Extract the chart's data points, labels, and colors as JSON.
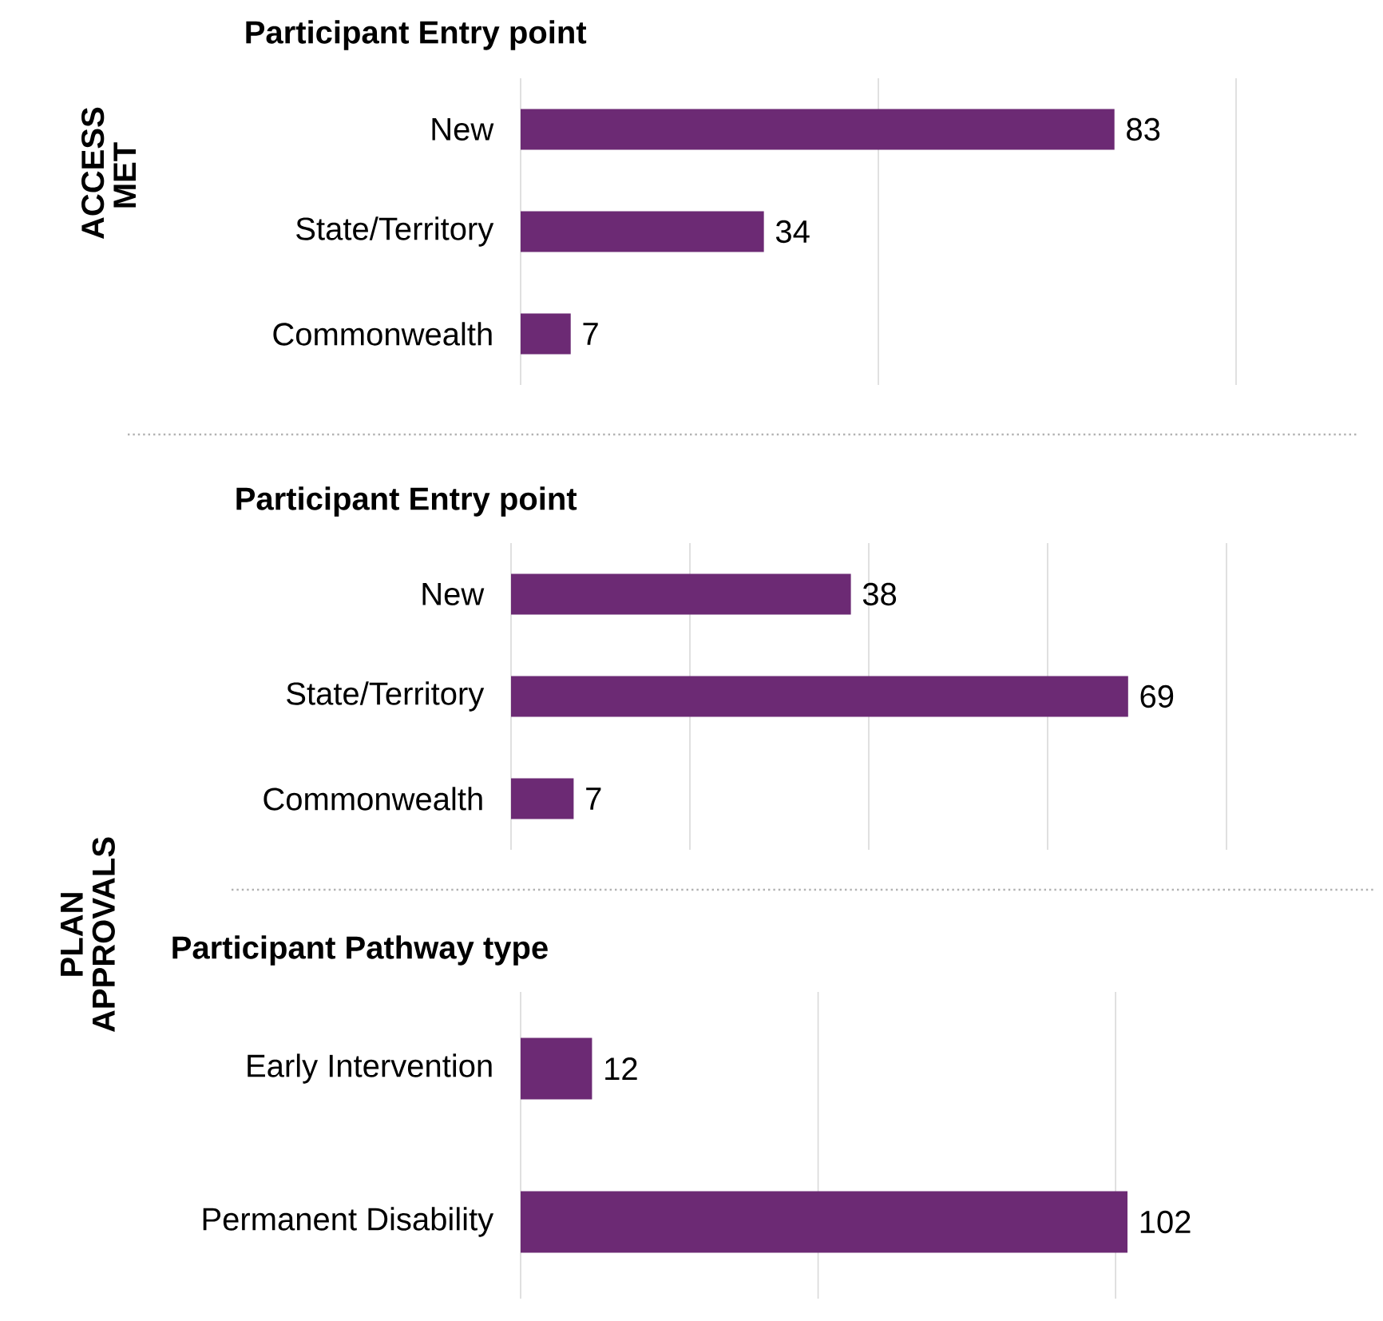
{
  "chart_data": [
    {
      "type": "bar",
      "orientation": "horizontal",
      "title": "Participant Entry point",
      "ylabel": "ACCESS MET",
      "categories": [
        "New",
        "State/Territory",
        "Commonwealth"
      ],
      "values": [
        83,
        34,
        7
      ],
      "color": "#6c2a74",
      "xlim": [
        0,
        100
      ],
      "xticks": [
        {
          "value": 0,
          "label": null
        },
        {
          "value": 50,
          "label": null
        },
        {
          "value": 100,
          "label": null
        }
      ],
      "grid": "x",
      "data_labels": true,
      "tick_labels": "y"
    },
    {
      "type": "bar",
      "orientation": "horizontal",
      "title": "Participant Entry point",
      "ylabel": "PLAN APPROVALS",
      "categories": [
        "New",
        "State/Territory",
        "Commonwealth"
      ],
      "values": [
        38,
        69,
        7
      ],
      "color": "#6c2a74",
      "xlim": [
        0,
        80
      ],
      "xticks": [
        {
          "value": 0,
          "label": null
        },
        {
          "value": 20,
          "label": null
        },
        {
          "value": 40,
          "label": null
        },
        {
          "value": 60,
          "label": null
        },
        {
          "value": 80,
          "label": null
        }
      ],
      "grid": "x",
      "data_labels": true,
      "tick_labels": "y"
    },
    {
      "type": "bar",
      "orientation": "horizontal",
      "title": "Participant Pathway type",
      "categories": [
        "Early Intervention",
        "Permanent Disability"
      ],
      "values": [
        12,
        102
      ],
      "color": "#6c2a74",
      "xlim": [
        0,
        102
      ],
      "xticks": [
        {
          "value": 0,
          "label": null
        },
        {
          "value": 50,
          "label": null
        },
        {
          "value": 100,
          "label": null
        }
      ],
      "grid": "x",
      "data_labels": true,
      "tick_labels": "y"
    }
  ]
}
